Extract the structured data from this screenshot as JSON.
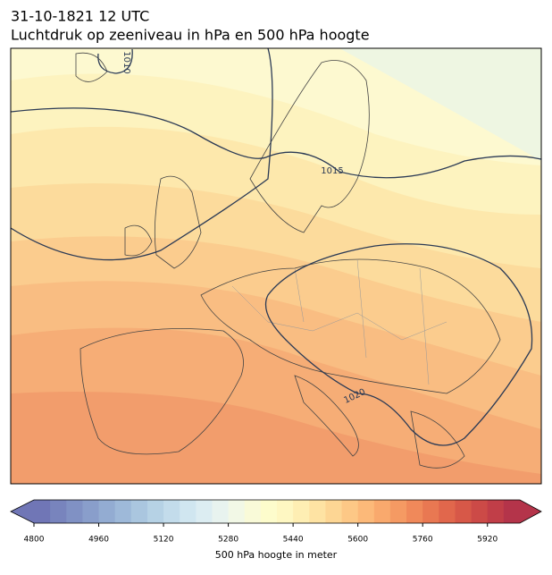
{
  "title": "31-10-1821 12 UTC",
  "subtitle": "Luchtdruk op zeeniveau in hPa en 500 hPa hoogte",
  "contour_labels": [
    "1010",
    "1015",
    "1020"
  ],
  "colorbar": {
    "label": "500 hPa hoogte in meter",
    "lim": [
      4800,
      6000
    ],
    "ticks": [
      4800,
      4960,
      5120,
      5280,
      5440,
      5600,
      5760,
      5920
    ],
    "colors": [
      "#7076b6",
      "#7884bd",
      "#8091c4",
      "#899ecb",
      "#93acd2",
      "#9eb9d9",
      "#aac6df",
      "#b6d2e5",
      "#c3dceb",
      "#d0e6f0",
      "#dcedf2",
      "#e8f3ef",
      "#f2f8e6",
      "#f9fad8",
      "#fdfccc",
      "#fef7c2",
      "#feeeb3",
      "#fee3a3",
      "#fdd694",
      "#fdc886",
      "#fcb979",
      "#f9a96d",
      "#f59a63",
      "#f0895a",
      "#e97852",
      "#e1674c",
      "#d75848",
      "#cc4a47",
      "#c13e48",
      "#b4344a"
    ]
  }
}
